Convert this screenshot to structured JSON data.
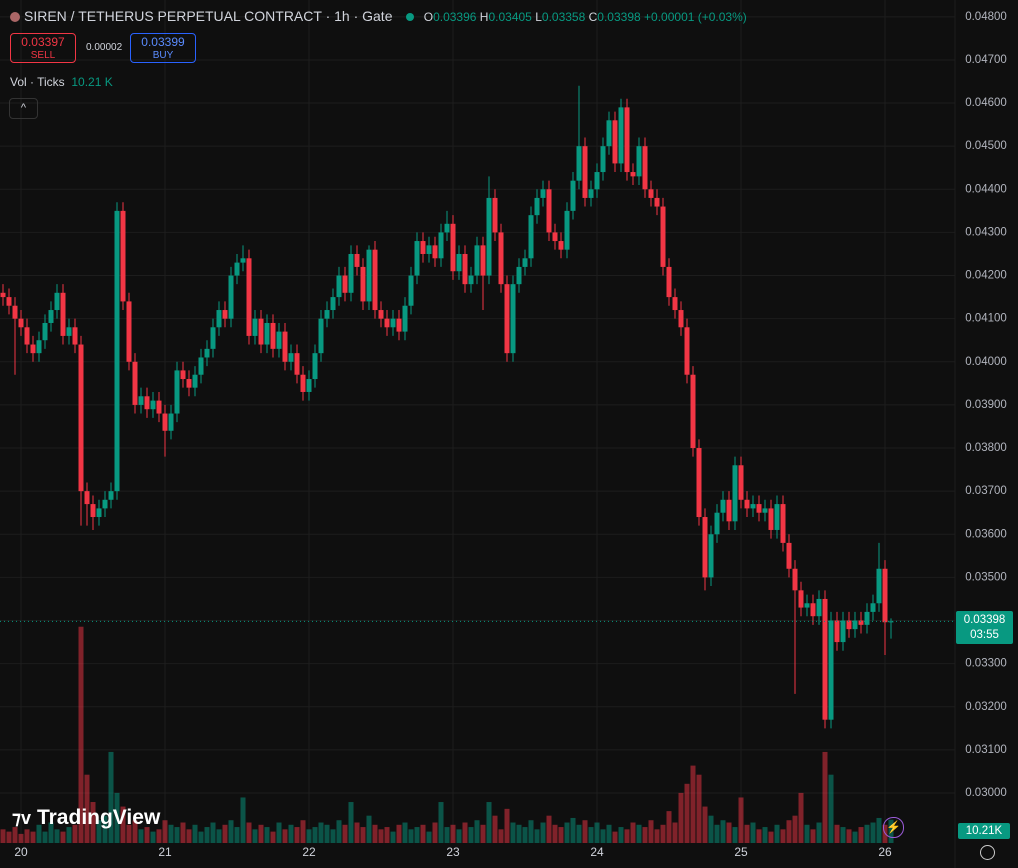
{
  "header": {
    "symbol_line": "SIREN / TETHERUS PERPETUAL CONTRACT · 1h · Gate",
    "o_label": "O",
    "h_label": "H",
    "l_label": "L",
    "c_label": "C",
    "change": "+0.00001 (+0.03%)",
    "sell_price": "0.03397",
    "sell_label": "SELL",
    "spread": "0.00002",
    "buy_price": "0.03399",
    "buy_label": "BUY",
    "vol_label": "Vol · Ticks",
    "vol_value": "10.21 K",
    "countdown": "03:55",
    "volume_badge": "10.21K",
    "logo": "TradingView"
  },
  "chart_data": {
    "type": "candlestick",
    "up_color": "#089981",
    "down_color": "#f23645",
    "grid": true,
    "categories": [
      null,
      null,
      null,
      "20",
      null,
      null,
      null,
      null,
      null,
      null,
      null,
      null,
      null,
      null,
      null,
      null,
      null,
      null,
      null,
      null,
      null,
      null,
      null,
      null,
      null,
      null,
      null,
      "21",
      null,
      null,
      null,
      null,
      null,
      null,
      null,
      null,
      null,
      null,
      null,
      null,
      null,
      null,
      null,
      null,
      null,
      null,
      null,
      null,
      null,
      null,
      null,
      "22",
      null,
      null,
      null,
      null,
      null,
      null,
      null,
      null,
      null,
      null,
      null,
      null,
      null,
      null,
      null,
      null,
      null,
      null,
      null,
      null,
      null,
      null,
      null,
      "23",
      null,
      null,
      null,
      null,
      null,
      null,
      null,
      null,
      null,
      null,
      null,
      null,
      null,
      null,
      null,
      null,
      null,
      null,
      null,
      null,
      null,
      null,
      null,
      "24",
      null,
      null,
      null,
      null,
      null,
      null,
      null,
      null,
      null,
      null,
      null,
      null,
      null,
      null,
      null,
      null,
      null,
      null,
      null,
      null,
      null,
      null,
      null,
      "25",
      null,
      null,
      null,
      null,
      null,
      null,
      null,
      null,
      null,
      null,
      null,
      null,
      null,
      null,
      null,
      null,
      null,
      null,
      null,
      null,
      null,
      null,
      null,
      "26",
      null
    ],
    "open": [
      0.0416,
      0.0415,
      0.0413,
      0.041,
      0.0408,
      0.0404,
      0.0402,
      0.0405,
      0.0409,
      0.0412,
      0.0416,
      0.0406,
      0.0408,
      0.0404,
      0.037,
      0.0367,
      0.0364,
      0.0366,
      0.0368,
      0.037,
      0.0435,
      0.0414,
      0.04,
      0.039,
      0.0392,
      0.0389,
      0.0391,
      0.0388,
      0.0384,
      0.0388,
      0.0398,
      0.0396,
      0.0394,
      0.0397,
      0.0401,
      0.0403,
      0.0408,
      0.0412,
      0.041,
      0.042,
      0.0423,
      0.0424,
      0.0406,
      0.041,
      0.0404,
      0.0409,
      0.0403,
      0.0407,
      0.04,
      0.0402,
      0.0397,
      0.0393,
      0.0396,
      0.0402,
      0.041,
      0.0412,
      0.0415,
      0.042,
      0.0416,
      0.0425,
      0.0422,
      0.0414,
      0.0426,
      0.0412,
      0.041,
      0.0408,
      0.041,
      0.0407,
      0.0413,
      0.042,
      0.0428,
      0.0425,
      0.0427,
      0.0424,
      0.043,
      0.0432,
      0.0421,
      0.0425,
      0.0418,
      0.042,
      0.0427,
      0.042,
      0.0438,
      0.043,
      0.0418,
      0.0402,
      0.0418,
      0.0422,
      0.0424,
      0.0434,
      0.0438,
      0.044,
      0.043,
      0.0428,
      0.0426,
      0.0435,
      0.0442,
      0.045,
      0.0438,
      0.044,
      0.0444,
      0.045,
      0.0456,
      0.0446,
      0.0459,
      0.0444,
      0.0443,
      0.045,
      0.044,
      0.0438,
      0.0436,
      0.0422,
      0.0415,
      0.0412,
      0.0408,
      0.0397,
      0.038,
      0.0364,
      0.035,
      0.036,
      0.0365,
      0.0368,
      0.0363,
      0.0376,
      0.0368,
      0.0366,
      0.0367,
      0.0365,
      0.0366,
      0.0361,
      0.0367,
      0.0358,
      0.0352,
      0.0347,
      0.0343,
      0.0344,
      0.0341,
      0.0345,
      0.0317,
      0.034,
      0.0335,
      0.034,
      0.0338,
      0.034,
      0.0339,
      0.0342,
      0.0344,
      0.0352,
      0.03396
    ],
    "high": [
      0.0418,
      0.0417,
      0.0415,
      0.0412,
      0.041,
      0.0406,
      0.0407,
      0.0411,
      0.0414,
      0.0418,
      0.0418,
      0.041,
      0.041,
      0.0406,
      0.0372,
      0.0369,
      0.0368,
      0.037,
      0.0372,
      0.0437,
      0.0437,
      0.0416,
      0.0402,
      0.0394,
      0.0394,
      0.0393,
      0.0393,
      0.039,
      0.039,
      0.04,
      0.04,
      0.0398,
      0.0399,
      0.0403,
      0.0405,
      0.041,
      0.0414,
      0.0414,
      0.0422,
      0.0425,
      0.0427,
      0.0426,
      0.0412,
      0.0412,
      0.0411,
      0.0411,
      0.0409,
      0.0409,
      0.0404,
      0.0404,
      0.0399,
      0.0398,
      0.0404,
      0.0412,
      0.0414,
      0.0417,
      0.0422,
      0.0422,
      0.0427,
      0.0427,
      0.0424,
      0.0427,
      0.0428,
      0.0414,
      0.0412,
      0.0412,
      0.0412,
      0.0415,
      0.0422,
      0.043,
      0.043,
      0.0429,
      0.0429,
      0.0432,
      0.0435,
      0.0434,
      0.0427,
      0.0427,
      0.0422,
      0.0429,
      0.0429,
      0.0443,
      0.044,
      0.0432,
      0.042,
      0.042,
      0.0424,
      0.0426,
      0.0436,
      0.044,
      0.0442,
      0.0442,
      0.0432,
      0.043,
      0.0437,
      0.0444,
      0.0464,
      0.0452,
      0.0442,
      0.0446,
      0.0452,
      0.0458,
      0.0458,
      0.0461,
      0.0461,
      0.0446,
      0.0452,
      0.0452,
      0.0442,
      0.044,
      0.0438,
      0.0424,
      0.0417,
      0.0414,
      0.041,
      0.0399,
      0.0382,
      0.0366,
      0.0362,
      0.0367,
      0.037,
      0.037,
      0.0378,
      0.0378,
      0.037,
      0.0369,
      0.0369,
      0.0368,
      0.0368,
      0.0369,
      0.0369,
      0.036,
      0.0354,
      0.0349,
      0.0346,
      0.0346,
      0.0347,
      0.0347,
      0.0342,
      0.0342,
      0.0342,
      0.0342,
      0.0342,
      0.0342,
      0.0344,
      0.0346,
      0.0358,
      0.0354,
      0.03405
    ],
    "low": [
      0.0413,
      0.0411,
      0.0397,
      0.0406,
      0.0402,
      0.04,
      0.04,
      0.0403,
      0.0407,
      0.041,
      0.0404,
      0.0404,
      0.0402,
      0.0362,
      0.0362,
      0.0361,
      0.0362,
      0.0364,
      0.0366,
      0.0368,
      0.0412,
      0.0398,
      0.0388,
      0.0388,
      0.0387,
      0.0387,
      0.0386,
      0.0378,
      0.0382,
      0.0386,
      0.0394,
      0.0392,
      0.0392,
      0.0395,
      0.0399,
      0.0401,
      0.0406,
      0.0408,
      0.0408,
      0.0418,
      0.0421,
      0.0404,
      0.0404,
      0.0402,
      0.0402,
      0.0401,
      0.0401,
      0.0398,
      0.0398,
      0.0395,
      0.0391,
      0.0391,
      0.0394,
      0.04,
      0.0408,
      0.041,
      0.0413,
      0.0414,
      0.0414,
      0.042,
      0.0412,
      0.0412,
      0.041,
      0.0408,
      0.0406,
      0.0406,
      0.0405,
      0.0405,
      0.0411,
      0.0418,
      0.0423,
      0.0423,
      0.0422,
      0.0422,
      0.0428,
      0.0419,
      0.0419,
      0.0416,
      0.0416,
      0.0418,
      0.0412,
      0.0418,
      0.0428,
      0.0416,
      0.04,
      0.04,
      0.0416,
      0.042,
      0.0422,
      0.0432,
      0.0436,
      0.0428,
      0.0426,
      0.0424,
      0.0424,
      0.0433,
      0.044,
      0.0436,
      0.0436,
      0.0438,
      0.0442,
      0.0448,
      0.0444,
      0.0444,
      0.0442,
      0.0441,
      0.0441,
      0.0438,
      0.0436,
      0.0434,
      0.042,
      0.0413,
      0.041,
      0.0406,
      0.0395,
      0.0378,
      0.0362,
      0.0347,
      0.0348,
      0.0358,
      0.0363,
      0.0361,
      0.0361,
      0.0366,
      0.0364,
      0.0364,
      0.0363,
      0.0363,
      0.0359,
      0.0359,
      0.0356,
      0.035,
      0.0323,
      0.0341,
      0.0341,
      0.0339,
      0.0339,
      0.0315,
      0.0315,
      0.0333,
      0.0333,
      0.0336,
      0.0336,
      0.0337,
      0.0337,
      0.034,
      0.0342,
      0.0332,
      0.03358
    ],
    "close": [
      0.0415,
      0.0413,
      0.041,
      0.0408,
      0.0404,
      0.0402,
      0.0405,
      0.0409,
      0.0412,
      0.0416,
      0.0406,
      0.0408,
      0.0404,
      0.037,
      0.0367,
      0.0364,
      0.0366,
      0.0368,
      0.037,
      0.0435,
      0.0414,
      0.04,
      0.039,
      0.0392,
      0.0389,
      0.0391,
      0.0388,
      0.0384,
      0.0388,
      0.0398,
      0.0396,
      0.0394,
      0.0397,
      0.0401,
      0.0403,
      0.0408,
      0.0412,
      0.041,
      0.042,
      0.0423,
      0.0424,
      0.0406,
      0.041,
      0.0404,
      0.0409,
      0.0403,
      0.0407,
      0.04,
      0.0402,
      0.0397,
      0.0393,
      0.0396,
      0.0402,
      0.041,
      0.0412,
      0.0415,
      0.042,
      0.0416,
      0.0425,
      0.0422,
      0.0414,
      0.0426,
      0.0412,
      0.041,
      0.0408,
      0.041,
      0.0407,
      0.0413,
      0.042,
      0.0428,
      0.0425,
      0.0427,
      0.0424,
      0.043,
      0.0432,
      0.0421,
      0.0425,
      0.0418,
      0.042,
      0.0427,
      0.042,
      0.0438,
      0.043,
      0.0418,
      0.0402,
      0.0418,
      0.0422,
      0.0424,
      0.0434,
      0.0438,
      0.044,
      0.043,
      0.0428,
      0.0426,
      0.0435,
      0.0442,
      0.045,
      0.0438,
      0.044,
      0.0444,
      0.045,
      0.0456,
      0.0446,
      0.0459,
      0.0444,
      0.0443,
      0.045,
      0.044,
      0.0438,
      0.0436,
      0.0422,
      0.0415,
      0.0412,
      0.0408,
      0.0397,
      0.038,
      0.0364,
      0.035,
      0.036,
      0.0365,
      0.0368,
      0.0363,
      0.0376,
      0.0368,
      0.0366,
      0.0367,
      0.0365,
      0.0366,
      0.0361,
      0.0367,
      0.0358,
      0.0352,
      0.0347,
      0.0343,
      0.0344,
      0.0341,
      0.0345,
      0.0317,
      0.034,
      0.0335,
      0.034,
      0.0338,
      0.034,
      0.0339,
      0.0342,
      0.0344,
      0.0352,
      0.03396,
      0.03398
    ],
    "ylim": [
      0.02891,
      0.04839
    ],
    "yticks": [
      {
        "value": 0.03,
        "label": "0.03000"
      },
      {
        "value": 0.031,
        "label": "0.03100"
      },
      {
        "value": 0.032,
        "label": "0.03200"
      },
      {
        "value": 0.033,
        "label": "0.03300"
      },
      {
        "value": 0.034,
        "label": "0.03400"
      },
      {
        "value": 0.035,
        "label": "0.03500"
      },
      {
        "value": 0.036,
        "label": "0.03600"
      },
      {
        "value": 0.037,
        "label": "0.03700"
      },
      {
        "value": 0.038,
        "label": "0.03800"
      },
      {
        "value": 0.039,
        "label": "0.03900"
      },
      {
        "value": 0.04,
        "label": "0.04000"
      },
      {
        "value": 0.041,
        "label": "0.04100"
      },
      {
        "value": 0.042,
        "label": "0.04200"
      },
      {
        "value": 0.043,
        "label": "0.04300"
      },
      {
        "value": 0.044,
        "label": "0.04400"
      },
      {
        "value": 0.045,
        "label": "0.04500"
      },
      {
        "value": 0.046,
        "label": "0.04600"
      },
      {
        "value": 0.047,
        "label": "0.04700"
      },
      {
        "value": 0.048,
        "label": "0.04800"
      }
    ],
    "volume": {
      "ylim": [
        0,
        300
      ],
      "values": [
        6,
        5,
        7,
        4,
        6,
        5,
        8,
        5,
        9,
        6,
        5,
        7,
        8,
        95,
        30,
        18,
        10,
        12,
        40,
        22,
        16,
        8,
        10,
        6,
        7,
        5,
        6,
        10,
        8,
        7,
        9,
        6,
        8,
        5,
        7,
        9,
        6,
        8,
        10,
        7,
        20,
        9,
        6,
        8,
        7,
        5,
        9,
        6,
        8,
        7,
        10,
        6,
        7,
        9,
        8,
        6,
        10,
        8,
        18,
        9,
        7,
        12,
        8,
        6,
        7,
        5,
        8,
        9,
        6,
        7,
        8,
        5,
        9,
        18,
        7,
        8,
        6,
        9,
        7,
        10,
        8,
        18,
        12,
        6,
        15,
        9,
        8,
        7,
        10,
        6,
        9,
        12,
        8,
        7,
        9,
        11,
        8,
        10,
        7,
        9,
        6,
        8,
        5,
        7,
        6,
        9,
        8,
        7,
        10,
        6,
        8,
        14,
        9,
        22,
        26,
        34,
        30,
        16,
        12,
        8,
        10,
        9,
        7,
        20,
        8,
        9,
        6,
        7,
        5,
        8,
        6,
        10,
        12,
        22,
        8,
        6,
        9,
        40,
        30,
        8,
        7,
        6,
        5,
        7,
        8,
        9,
        11,
        8,
        10.21
      ]
    }
  }
}
